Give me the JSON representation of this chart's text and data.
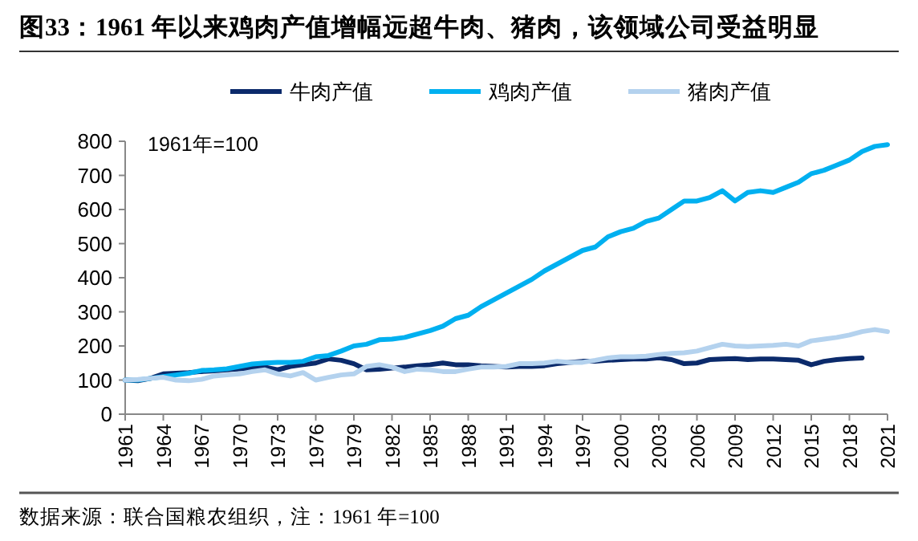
{
  "chart_data": {
    "type": "line",
    "title": "图33：1961 年以来鸡肉产值增幅远超牛肉、猪肉，该领域公司受益明显",
    "annotations": [
      "1961年=100",
      "数据来源：联合国粮农组织，注：1961 年=100"
    ],
    "x": [
      1961,
      1962,
      1963,
      1964,
      1965,
      1966,
      1967,
      1968,
      1969,
      1970,
      1971,
      1972,
      1973,
      1974,
      1975,
      1976,
      1977,
      1978,
      1979,
      1980,
      1981,
      1982,
      1983,
      1984,
      1985,
      1986,
      1987,
      1988,
      1989,
      1990,
      1991,
      1992,
      1993,
      1994,
      1995,
      1996,
      1997,
      1998,
      1999,
      2000,
      2001,
      2002,
      2003,
      2004,
      2005,
      2006,
      2007,
      2008,
      2009,
      2010,
      2011,
      2012,
      2013,
      2014,
      2015,
      2016,
      2017,
      2018,
      2019,
      2020,
      2021
    ],
    "series": [
      {
        "name": "牛肉产值",
        "color": "#0b2a6b",
        "values": [
          100,
          98,
          105,
          118,
          120,
          122,
          125,
          127,
          130,
          133,
          135,
          138,
          130,
          140,
          145,
          150,
          162,
          158,
          148,
          130,
          132,
          135,
          138,
          142,
          145,
          150,
          145,
          145,
          142,
          140,
          138,
          140,
          140,
          142,
          148,
          152,
          155,
          155,
          158,
          160,
          162,
          162,
          165,
          160,
          148,
          150,
          160,
          162,
          163,
          160,
          162,
          162,
          160,
          158,
          145,
          155,
          160,
          163,
          165,
          null,
          null
        ]
      },
      {
        "name": "鸡肉产值",
        "color": "#00b0f0",
        "values": [
          100,
          100,
          105,
          110,
          115,
          120,
          128,
          130,
          133,
          140,
          147,
          150,
          152,
          152,
          155,
          168,
          172,
          185,
          200,
          205,
          218,
          220,
          225,
          235,
          245,
          258,
          280,
          290,
          315,
          335,
          355,
          375,
          395,
          420,
          440,
          460,
          480,
          490,
          520,
          535,
          545,
          565,
          575,
          600,
          625,
          625,
          635,
          655,
          625,
          650,
          655,
          650,
          665,
          680,
          705,
          715,
          730,
          745,
          770,
          785,
          790
        ]
      },
      {
        "name": "猪肉产值",
        "color": "#b4d2ee",
        "values": [
          100,
          102,
          105,
          108,
          100,
          98,
          102,
          112,
          115,
          118,
          125,
          130,
          118,
          112,
          122,
          100,
          108,
          115,
          118,
          140,
          145,
          138,
          125,
          132,
          130,
          125,
          125,
          132,
          138,
          138,
          140,
          148,
          148,
          150,
          155,
          152,
          152,
          158,
          165,
          168,
          168,
          170,
          175,
          178,
          180,
          185,
          195,
          205,
          200,
          198,
          200,
          202,
          205,
          200,
          215,
          220,
          225,
          232,
          242,
          248,
          242
        ]
      }
    ],
    "xlim": [
      1961,
      2021
    ],
    "xticks": [
      1961,
      1964,
      1967,
      1970,
      1973,
      1976,
      1979,
      1982,
      1985,
      1988,
      1991,
      1994,
      1997,
      2000,
      2003,
      2006,
      2009,
      2012,
      2015,
      2018,
      2021
    ],
    "ylim": [
      0,
      800
    ],
    "yticks": [
      0,
      100,
      200,
      300,
      400,
      500,
      600,
      700,
      800
    ],
    "legend": "top",
    "line_style": "solid"
  }
}
